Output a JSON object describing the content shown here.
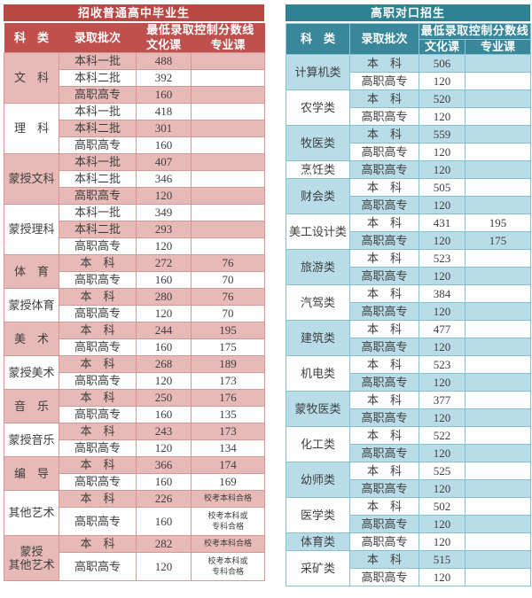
{
  "left_table": {
    "title": "招收普通高中毕业生",
    "headers": {
      "category": "科　类",
      "batch": "录取批次",
      "score_line": "最低录取控制分数线",
      "culture": "文化课",
      "major": "专业课"
    },
    "colors": {
      "title_bg": "#b84842",
      "header_bg": "#c0504d",
      "band": "#e7b9b7",
      "border": "#d69694"
    },
    "groups": [
      {
        "category": "文　科",
        "rows": [
          [
            "本科一批",
            "488",
            ""
          ],
          [
            "本科二批",
            "392",
            ""
          ],
          [
            "高职高专",
            "160",
            ""
          ]
        ]
      },
      {
        "category": "理　科",
        "rows": [
          [
            "本科一批",
            "418",
            ""
          ],
          [
            "本科二批",
            "301",
            ""
          ],
          [
            "高职高专",
            "160",
            ""
          ]
        ]
      },
      {
        "category": "蒙授文科",
        "rows": [
          [
            "本科一批",
            "407",
            ""
          ],
          [
            "本科二批",
            "346",
            ""
          ],
          [
            "高职高专",
            "120",
            ""
          ]
        ]
      },
      {
        "category": "蒙授理科",
        "rows": [
          [
            "本科一批",
            "349",
            ""
          ],
          [
            "本科二批",
            "293",
            ""
          ],
          [
            "高职高专",
            "120",
            ""
          ]
        ]
      },
      {
        "category": "体　育",
        "rows": [
          [
            "本　科",
            "272",
            "76"
          ],
          [
            "高职高专",
            "160",
            "70"
          ]
        ]
      },
      {
        "category": "蒙授体育",
        "rows": [
          [
            "本　科",
            "280",
            "76"
          ],
          [
            "高职高专",
            "120",
            "70"
          ]
        ]
      },
      {
        "category": "美　术",
        "rows": [
          [
            "本　科",
            "244",
            "195"
          ],
          [
            "高职高专",
            "160",
            "175"
          ]
        ]
      },
      {
        "category": "蒙授美术",
        "rows": [
          [
            "本　科",
            "268",
            "189"
          ],
          [
            "高职高专",
            "120",
            "173"
          ]
        ]
      },
      {
        "category": "音　乐",
        "rows": [
          [
            "本　科",
            "250",
            "176"
          ],
          [
            "高职高专",
            "160",
            "135"
          ]
        ]
      },
      {
        "category": "蒙授音乐",
        "rows": [
          [
            "本　科",
            "243",
            "173"
          ],
          [
            "高职高专",
            "120",
            "134"
          ]
        ]
      },
      {
        "category": "编　导",
        "rows": [
          [
            "本　科",
            "366",
            "174"
          ],
          [
            "高职高专",
            "160",
            "169"
          ]
        ]
      },
      {
        "category": "其他艺术",
        "rows": [
          [
            "本　科",
            "226",
            "校考本科合格"
          ],
          [
            "高职高专",
            "160",
            "校考本科或\n专科合格"
          ]
        ]
      },
      {
        "category": "蒙授\n其他艺术",
        "rows": [
          [
            "本　科",
            "282",
            "校考本科合格"
          ],
          [
            "高职高专",
            "120",
            "校考本科或\n专科合格"
          ]
        ]
      }
    ]
  },
  "right_table": {
    "title": "高职对口招生",
    "headers": {
      "category": "科　类",
      "batch": "录取批次",
      "score_line": "最低录取控制分数线",
      "culture": "文化课",
      "major": "专业课"
    },
    "colors": {
      "title_bg": "#2f8292",
      "header_bg": "#38879b",
      "band": "#b9dde8",
      "border": "#85c0d1"
    },
    "groups": [
      {
        "category": "计算机类",
        "rows": [
          [
            "本　科",
            "506",
            ""
          ],
          [
            "高职高专",
            "120",
            ""
          ]
        ]
      },
      {
        "category": "农学类",
        "rows": [
          [
            "本　科",
            "520",
            ""
          ],
          [
            "高职高专",
            "120",
            ""
          ]
        ]
      },
      {
        "category": "牧医类",
        "rows": [
          [
            "本　科",
            "559",
            ""
          ],
          [
            "高职高专",
            "120",
            ""
          ]
        ]
      },
      {
        "category": "烹饪类",
        "rows": [
          [
            "高职高专",
            "120",
            ""
          ]
        ]
      },
      {
        "category": "财会类",
        "rows": [
          [
            "本　科",
            "505",
            ""
          ],
          [
            "高职高专",
            "120",
            ""
          ]
        ]
      },
      {
        "category": "美工设计类",
        "rows": [
          [
            "本　科",
            "431",
            "195"
          ],
          [
            "高职高专",
            "120",
            "175"
          ]
        ]
      },
      {
        "category": "旅游类",
        "rows": [
          [
            "本　科",
            "523",
            ""
          ],
          [
            "高职高专",
            "120",
            ""
          ]
        ]
      },
      {
        "category": "汽驾类",
        "rows": [
          [
            "本　科",
            "384",
            ""
          ],
          [
            "高职高专",
            "120",
            ""
          ]
        ]
      },
      {
        "category": "建筑类",
        "rows": [
          [
            "本　科",
            "477",
            ""
          ],
          [
            "高职高专",
            "120",
            ""
          ]
        ]
      },
      {
        "category": "机电类",
        "rows": [
          [
            "本　科",
            "523",
            ""
          ],
          [
            "高职高专",
            "120",
            ""
          ]
        ]
      },
      {
        "category": "蒙牧医类",
        "rows": [
          [
            "本　科",
            "377",
            ""
          ],
          [
            "高职高专",
            "120",
            ""
          ]
        ]
      },
      {
        "category": "化工类",
        "rows": [
          [
            "本　科",
            "522",
            ""
          ],
          [
            "高职高专",
            "120",
            ""
          ]
        ]
      },
      {
        "category": "幼师类",
        "rows": [
          [
            "本　科",
            "525",
            ""
          ],
          [
            "高职高专",
            "120",
            ""
          ]
        ]
      },
      {
        "category": "医学类",
        "rows": [
          [
            "本　科",
            "502",
            ""
          ],
          [
            "高职高专",
            "120",
            ""
          ]
        ]
      },
      {
        "category": "体育类",
        "rows": [
          [
            "高职高专",
            "120",
            ""
          ]
        ]
      },
      {
        "category": "采矿类",
        "rows": [
          [
            "本　科",
            "515",
            ""
          ],
          [
            "高职高专",
            "120",
            ""
          ]
        ]
      }
    ]
  }
}
